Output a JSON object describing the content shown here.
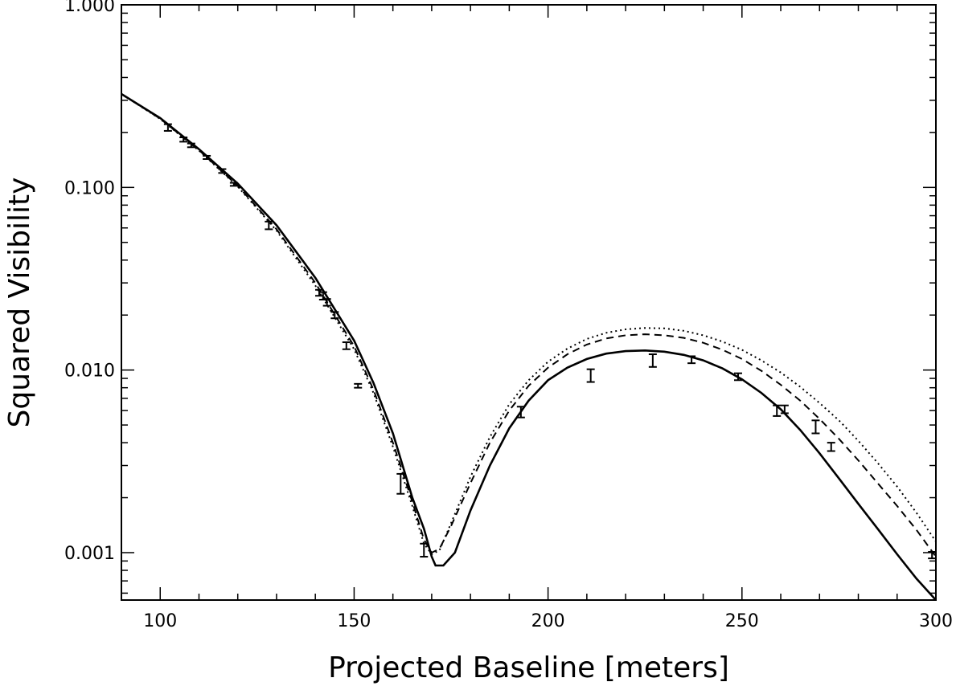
{
  "chart_data": {
    "type": "scatter",
    "title": "",
    "xlabel": "Projected Baseline [meters]",
    "ylabel": "Squared Visibility",
    "xlim": [
      90,
      300
    ],
    "ylim": [
      0.00055,
      1.0
    ],
    "y_scale": "log",
    "grid": false,
    "legend": "none",
    "x_ticks": [
      {
        "value": 100,
        "label": "100"
      },
      {
        "value": 150,
        "label": "150"
      },
      {
        "value": 200,
        "label": "200"
      },
      {
        "value": 250,
        "label": "250"
      },
      {
        "value": 300,
        "label": "300"
      }
    ],
    "y_ticks": [
      {
        "value": 0.001,
        "label": "0.001"
      },
      {
        "value": 0.01,
        "label": "0.010"
      },
      {
        "value": 0.1,
        "label": "0.100"
      },
      {
        "value": 1.0,
        "label": "1.000"
      }
    ],
    "data_points": [
      {
        "x": 102,
        "y": 0.213,
        "ylo": 0.204,
        "yhi": 0.222
      },
      {
        "x": 106,
        "y": 0.183,
        "ylo": 0.178,
        "yhi": 0.188
      },
      {
        "x": 108,
        "y": 0.17,
        "ylo": 0.166,
        "yhi": 0.174
      },
      {
        "x": 112,
        "y": 0.146,
        "ylo": 0.143,
        "yhi": 0.149
      },
      {
        "x": 116,
        "y": 0.123,
        "ylo": 0.12,
        "yhi": 0.126
      },
      {
        "x": 119,
        "y": 0.104,
        "ylo": 0.102,
        "yhi": 0.106
      },
      {
        "x": 128,
        "y": 0.062,
        "ylo": 0.059,
        "yhi": 0.065
      },
      {
        "x": 141,
        "y": 0.0265,
        "ylo": 0.0255,
        "yhi": 0.0275
      },
      {
        "x": 142,
        "y": 0.0255,
        "ylo": 0.0243,
        "yhi": 0.0267
      },
      {
        "x": 143,
        "y": 0.0235,
        "ylo": 0.0225,
        "yhi": 0.0245
      },
      {
        "x": 145,
        "y": 0.02,
        "ylo": 0.0192,
        "yhi": 0.0208
      },
      {
        "x": 148,
        "y": 0.0136,
        "ylo": 0.013,
        "yhi": 0.0142
      },
      {
        "x": 151,
        "y": 0.0082,
        "ylo": 0.008,
        "yhi": 0.0084
      },
      {
        "x": 162,
        "y": 0.0024,
        "ylo": 0.0021,
        "yhi": 0.0027
      },
      {
        "x": 168,
        "y": 0.00103,
        "ylo": 0.00095,
        "yhi": 0.00112
      },
      {
        "x": 193,
        "y": 0.0059,
        "ylo": 0.0055,
        "yhi": 0.0063
      },
      {
        "x": 211,
        "y": 0.0093,
        "ylo": 0.0086,
        "yhi": 0.0101
      },
      {
        "x": 227,
        "y": 0.0113,
        "ylo": 0.0104,
        "yhi": 0.0122
      },
      {
        "x": 237,
        "y": 0.0114,
        "ylo": 0.0109,
        "yhi": 0.0119
      },
      {
        "x": 249,
        "y": 0.0092,
        "ylo": 0.0088,
        "yhi": 0.0096
      },
      {
        "x": 259,
        "y": 0.006,
        "ylo": 0.0056,
        "yhi": 0.0064
      },
      {
        "x": 261,
        "y": 0.0061,
        "ylo": 0.0058,
        "yhi": 0.0064
      },
      {
        "x": 269,
        "y": 0.0049,
        "ylo": 0.0045,
        "yhi": 0.0053
      },
      {
        "x": 273,
        "y": 0.0038,
        "ylo": 0.0036,
        "yhi": 0.004
      },
      {
        "x": 299,
        "y": 0.00097,
        "ylo": 0.00093,
        "yhi": 0.00101
      }
    ],
    "series": [
      {
        "style": "solid",
        "points": [
          [
            90,
            0.325
          ],
          [
            100,
            0.24
          ],
          [
            110,
            0.162
          ],
          [
            120,
            0.105
          ],
          [
            130,
            0.062
          ],
          [
            140,
            0.032
          ],
          [
            150,
            0.0145
          ],
          [
            155,
            0.0085
          ],
          [
            160,
            0.0045
          ],
          [
            165,
            0.002
          ],
          [
            168,
            0.00135
          ],
          [
            170,
            0.00095
          ],
          [
            171,
            0.00085
          ],
          [
            173,
            0.00085
          ],
          [
            176,
            0.001
          ],
          [
            180,
            0.0017
          ],
          [
            185,
            0.003
          ],
          [
            190,
            0.0048
          ],
          [
            195,
            0.0068
          ],
          [
            200,
            0.0088
          ],
          [
            205,
            0.0103
          ],
          [
            210,
            0.0115
          ],
          [
            215,
            0.0123
          ],
          [
            220,
            0.0127
          ],
          [
            225,
            0.0128
          ],
          [
            230,
            0.0126
          ],
          [
            235,
            0.0121
          ],
          [
            240,
            0.0113
          ],
          [
            245,
            0.0102
          ],
          [
            250,
            0.0089
          ],
          [
            255,
            0.0075
          ],
          [
            260,
            0.0061
          ],
          [
            265,
            0.0047
          ],
          [
            270,
            0.0035
          ],
          [
            275,
            0.00255
          ],
          [
            280,
            0.00185
          ],
          [
            285,
            0.00135
          ],
          [
            290,
            0.00098
          ],
          [
            295,
            0.00072
          ],
          [
            300,
            0.00055
          ]
        ]
      },
      {
        "style": "dashed",
        "points": [
          [
            90,
            0.325
          ],
          [
            100,
            0.238
          ],
          [
            110,
            0.16
          ],
          [
            120,
            0.102
          ],
          [
            130,
            0.059
          ],
          [
            140,
            0.03
          ],
          [
            150,
            0.0135
          ],
          [
            155,
            0.0078
          ],
          [
            160,
            0.004
          ],
          [
            165,
            0.0019
          ],
          [
            168,
            0.00118
          ],
          [
            170,
            0.001
          ],
          [
            172,
            0.00105
          ],
          [
            175,
            0.0014
          ],
          [
            180,
            0.0024
          ],
          [
            185,
            0.004
          ],
          [
            190,
            0.006
          ],
          [
            195,
            0.0082
          ],
          [
            200,
            0.0103
          ],
          [
            205,
            0.0122
          ],
          [
            210,
            0.0138
          ],
          [
            215,
            0.0149
          ],
          [
            220,
            0.0155
          ],
          [
            225,
            0.0157
          ],
          [
            230,
            0.0155
          ],
          [
            235,
            0.015
          ],
          [
            240,
            0.0141
          ],
          [
            245,
            0.0129
          ],
          [
            250,
            0.0115
          ],
          [
            255,
            0.0099
          ],
          [
            260,
            0.0083
          ],
          [
            265,
            0.0068
          ],
          [
            270,
            0.0054
          ],
          [
            275,
            0.0042
          ],
          [
            280,
            0.0032
          ],
          [
            285,
            0.0024
          ],
          [
            290,
            0.0018
          ],
          [
            295,
            0.00133
          ],
          [
            300,
            0.00095
          ]
        ]
      },
      {
        "style": "dotted",
        "points": [
          [
            90,
            0.325
          ],
          [
            100,
            0.237
          ],
          [
            110,
            0.159
          ],
          [
            120,
            0.101
          ],
          [
            130,
            0.058
          ],
          [
            140,
            0.029
          ],
          [
            150,
            0.013
          ],
          [
            155,
            0.0075
          ],
          [
            160,
            0.0038
          ],
          [
            165,
            0.0018
          ],
          [
            168,
            0.00112
          ],
          [
            170,
            0.00098
          ],
          [
            172,
            0.00103
          ],
          [
            175,
            0.00145
          ],
          [
            180,
            0.0026
          ],
          [
            185,
            0.0043
          ],
          [
            190,
            0.0065
          ],
          [
            195,
            0.0088
          ],
          [
            200,
            0.0111
          ],
          [
            205,
            0.0131
          ],
          [
            210,
            0.0148
          ],
          [
            215,
            0.016
          ],
          [
            220,
            0.0167
          ],
          [
            225,
            0.017
          ],
          [
            230,
            0.0169
          ],
          [
            235,
            0.0164
          ],
          [
            240,
            0.0155
          ],
          [
            245,
            0.0143
          ],
          [
            250,
            0.0129
          ],
          [
            255,
            0.0113
          ],
          [
            260,
            0.0097
          ],
          [
            265,
            0.0081
          ],
          [
            270,
            0.0066
          ],
          [
            275,
            0.0053
          ],
          [
            280,
            0.0041
          ],
          [
            285,
            0.0031
          ],
          [
            290,
            0.0023
          ],
          [
            295,
            0.00165
          ],
          [
            300,
            0.00115
          ]
        ]
      }
    ]
  }
}
